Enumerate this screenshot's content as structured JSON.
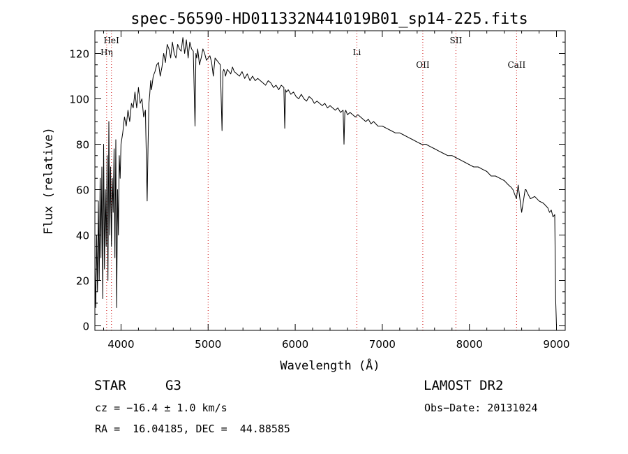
{
  "chart_data": {
    "type": "line",
    "title": "spec-56590-HD011332N441019B01_sp14-225.fits",
    "xlabel": "Wavelength (Å)",
    "ylabel": "Flux (relative)",
    "xlim": [
      3700,
      9100
    ],
    "ylim": [
      -2,
      130
    ],
    "x_ticks": [
      4000,
      5000,
      6000,
      7000,
      8000,
      9000
    ],
    "y_ticks": [
      0,
      20,
      40,
      60,
      80,
      100,
      120
    ],
    "grid": false,
    "line_color": "#000000",
    "marker_color": "#cc0000",
    "series": [
      {
        "x": [
          3700,
          3710,
          3720,
          3730,
          3740,
          3750,
          3760,
          3770,
          3780,
          3790,
          3800,
          3810,
          3820,
          3830,
          3840,
          3850,
          3860,
          3870,
          3880,
          3890,
          3900,
          3910,
          3920,
          3930,
          3940,
          3950,
          3960,
          3970,
          3980,
          3990,
          4000,
          4020,
          4040,
          4060,
          4080,
          4100,
          4120,
          4140,
          4160,
          4180,
          4200,
          4220,
          4240,
          4260,
          4280,
          4300,
          4310,
          4320,
          4330,
          4340,
          4350,
          4370,
          4390,
          4410,
          4430,
          4450,
          4470,
          4490,
          4510,
          4530,
          4550,
          4570,
          4590,
          4610,
          4630,
          4650,
          4670,
          4690,
          4710,
          4730,
          4750,
          4770,
          4790,
          4810,
          4830,
          4850,
          4860,
          4870,
          4880,
          4890,
          4900,
          4920,
          4940,
          4960,
          4980,
          5000,
          5020,
          5040,
          5060,
          5080,
          5100,
          5120,
          5140,
          5160,
          5170,
          5180,
          5190,
          5200,
          5220,
          5240,
          5260,
          5280,
          5300,
          5330,
          5360,
          5390,
          5420,
          5450,
          5480,
          5510,
          5540,
          5570,
          5600,
          5630,
          5660,
          5690,
          5720,
          5750,
          5780,
          5810,
          5840,
          5870,
          5880,
          5890,
          5900,
          5920,
          5950,
          5980,
          6010,
          6040,
          6070,
          6100,
          6130,
          6160,
          6190,
          6220,
          6250,
          6280,
          6310,
          6340,
          6370,
          6400,
          6430,
          6460,
          6490,
          6520,
          6550,
          6560,
          6570,
          6580,
          6600,
          6630,
          6660,
          6690,
          6720,
          6750,
          6780,
          6810,
          6840,
          6870,
          6900,
          6950,
          7000,
          7050,
          7100,
          7150,
          7200,
          7250,
          7300,
          7350,
          7400,
          7450,
          7500,
          7550,
          7600,
          7650,
          7700,
          7750,
          7800,
          7850,
          7900,
          7950,
          8000,
          8050,
          8100,
          8150,
          8200,
          8250,
          8300,
          8350,
          8400,
          8450,
          8480,
          8500,
          8520,
          8540,
          8560,
          8600,
          8640,
          8650,
          8660,
          8700,
          8750,
          8800,
          8850,
          8900,
          8920,
          8940,
          8960,
          8980,
          8990,
          9000
        ],
        "y": [
          25,
          8,
          40,
          15,
          55,
          20,
          65,
          30,
          70,
          12,
          80,
          25,
          60,
          35,
          75,
          20,
          90,
          40,
          70,
          35,
          65,
          50,
          78,
          30,
          82,
          8,
          60,
          40,
          75,
          65,
          80,
          85,
          92,
          88,
          95,
          90,
          98,
          96,
          103,
          96,
          105,
          98,
          100,
          92,
          95,
          55,
          78,
          98,
          102,
          108,
          104,
          110,
          112,
          115,
          116,
          110,
          114,
          120,
          116,
          124,
          122,
          118,
          125,
          120,
          118,
          124,
          122,
          121,
          127,
          120,
          126,
          118,
          125,
          122,
          121,
          88,
          120,
          118,
          122,
          119,
          115,
          118,
          122,
          120,
          117,
          118,
          119,
          116,
          110,
          118,
          117,
          116,
          115,
          86,
          112,
          113,
          112,
          110,
          113,
          112,
          111,
          114,
          112,
          111,
          110,
          112,
          109,
          111,
          108,
          110,
          108,
          109,
          108,
          107,
          106,
          108,
          107,
          105,
          106,
          104,
          106,
          105,
          87,
          104,
          103,
          104,
          102,
          103,
          101,
          100,
          102,
          100,
          99,
          101,
          100,
          98,
          99,
          98,
          97,
          98,
          96,
          97,
          96,
          95,
          96,
          94,
          95,
          80,
          94,
          95,
          93,
          94,
          93,
          92,
          93,
          92,
          91,
          90,
          91,
          89,
          90,
          88,
          88,
          87,
          86,
          85,
          85,
          84,
          83,
          82,
          81,
          80,
          80,
          79,
          78,
          77,
          76,
          75,
          75,
          74,
          73,
          72,
          71,
          70,
          70,
          69,
          68,
          66,
          66,
          65,
          64,
          62,
          61,
          60,
          58,
          56,
          62,
          50,
          60,
          60,
          59,
          56,
          57,
          55,
          54,
          52,
          50,
          51,
          48,
          49,
          12,
          0
        ]
      }
    ],
    "line_markers": [
      {
        "label": "HeI",
        "x": 3890,
        "pos": "top"
      },
      {
        "label": "Hη",
        "x": 3835,
        "pos": "top2"
      },
      {
        "label": "Li",
        "x": 6708,
        "pos": "top2"
      },
      {
        "label": "OII",
        "x": 7465,
        "pos": "top3"
      },
      {
        "label": "SII",
        "x": 7845,
        "pos": "top"
      },
      {
        "label": "CaII",
        "x": 8542,
        "pos": "top3"
      },
      {
        "label": "",
        "x": 5000,
        "pos": "none"
      }
    ]
  },
  "info": {
    "obj_class": "STAR",
    "subclass": "G3",
    "cz": "cz = −16.4 ± 1.0 km/s",
    "radec": "RA =  16.04185, DEC =  44.88585",
    "survey": "LAMOST DR2",
    "obs_date": "Obs−Date: 20131024"
  }
}
